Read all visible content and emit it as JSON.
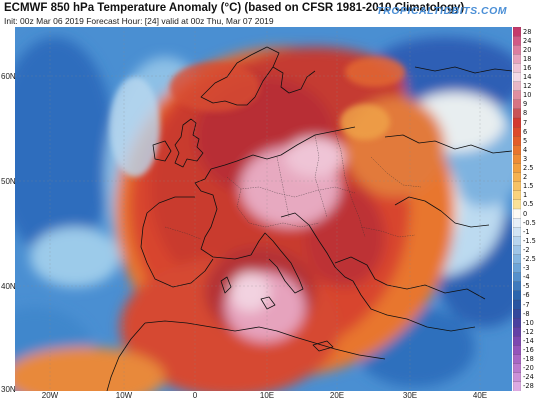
{
  "header": {
    "title": "ECMWF 850 hPa Temperature Anomaly (°C) (based on CFSR 1981-2010 Climatology)",
    "subtitle": "Init: 00z Mar 06 2019   Forecast Hour: [24]   valid at 00z Thu, Mar 07 2019",
    "brand": "TROPICALTIDBITS.COM"
  },
  "lat_labels": [
    "60N",
    "50N",
    "40N",
    "30N"
  ],
  "lon_labels": [
    "20W",
    "10W",
    "0",
    "10E",
    "20E",
    "30E",
    "40E"
  ],
  "colorbar": {
    "labels": [
      "28",
      "24",
      "20",
      "18",
      "16",
      "14",
      "12",
      "10",
      "9",
      "8",
      "7",
      "6",
      "5",
      "4",
      "3",
      "2.5",
      "2",
      "1.5",
      "1",
      "0.5",
      "0",
      "-0.5",
      "-1",
      "-1.5",
      "-2",
      "-2.5",
      "-3",
      "-4",
      "-5",
      "-6",
      "-7",
      "-8",
      "-10",
      "-12",
      "-14",
      "-16",
      "-18",
      "-20",
      "-24",
      "-28"
    ],
    "colors": [
      "#c43a6b",
      "#d05a86",
      "#db7ea0",
      "#e6a3bd",
      "#efc4d6",
      "#f4d9e6",
      "#e8b7c6",
      "#de8fa0",
      "#d77482",
      "#c95357",
      "#d33a30",
      "#dc4a2c",
      "#e25d2a",
      "#e8752e",
      "#ee8c36",
      "#f2a03f",
      "#f5b251",
      "#f6c266",
      "#f8d27d",
      "#fae198",
      "#fdfbf4",
      "#e7f0f8",
      "#d1e4f4",
      "#b8d5ee",
      "#9fc5e7",
      "#86b6e0",
      "#6ea5d8",
      "#5590cc",
      "#3f7abd",
      "#2c66ad",
      "#2a55a0",
      "#34489c",
      "#4a409f",
      "#6440a6",
      "#7d47b0",
      "#9454ba",
      "#a866c4",
      "#bb7ace",
      "#cc91d8",
      "#dcaae2"
    ]
  }
}
